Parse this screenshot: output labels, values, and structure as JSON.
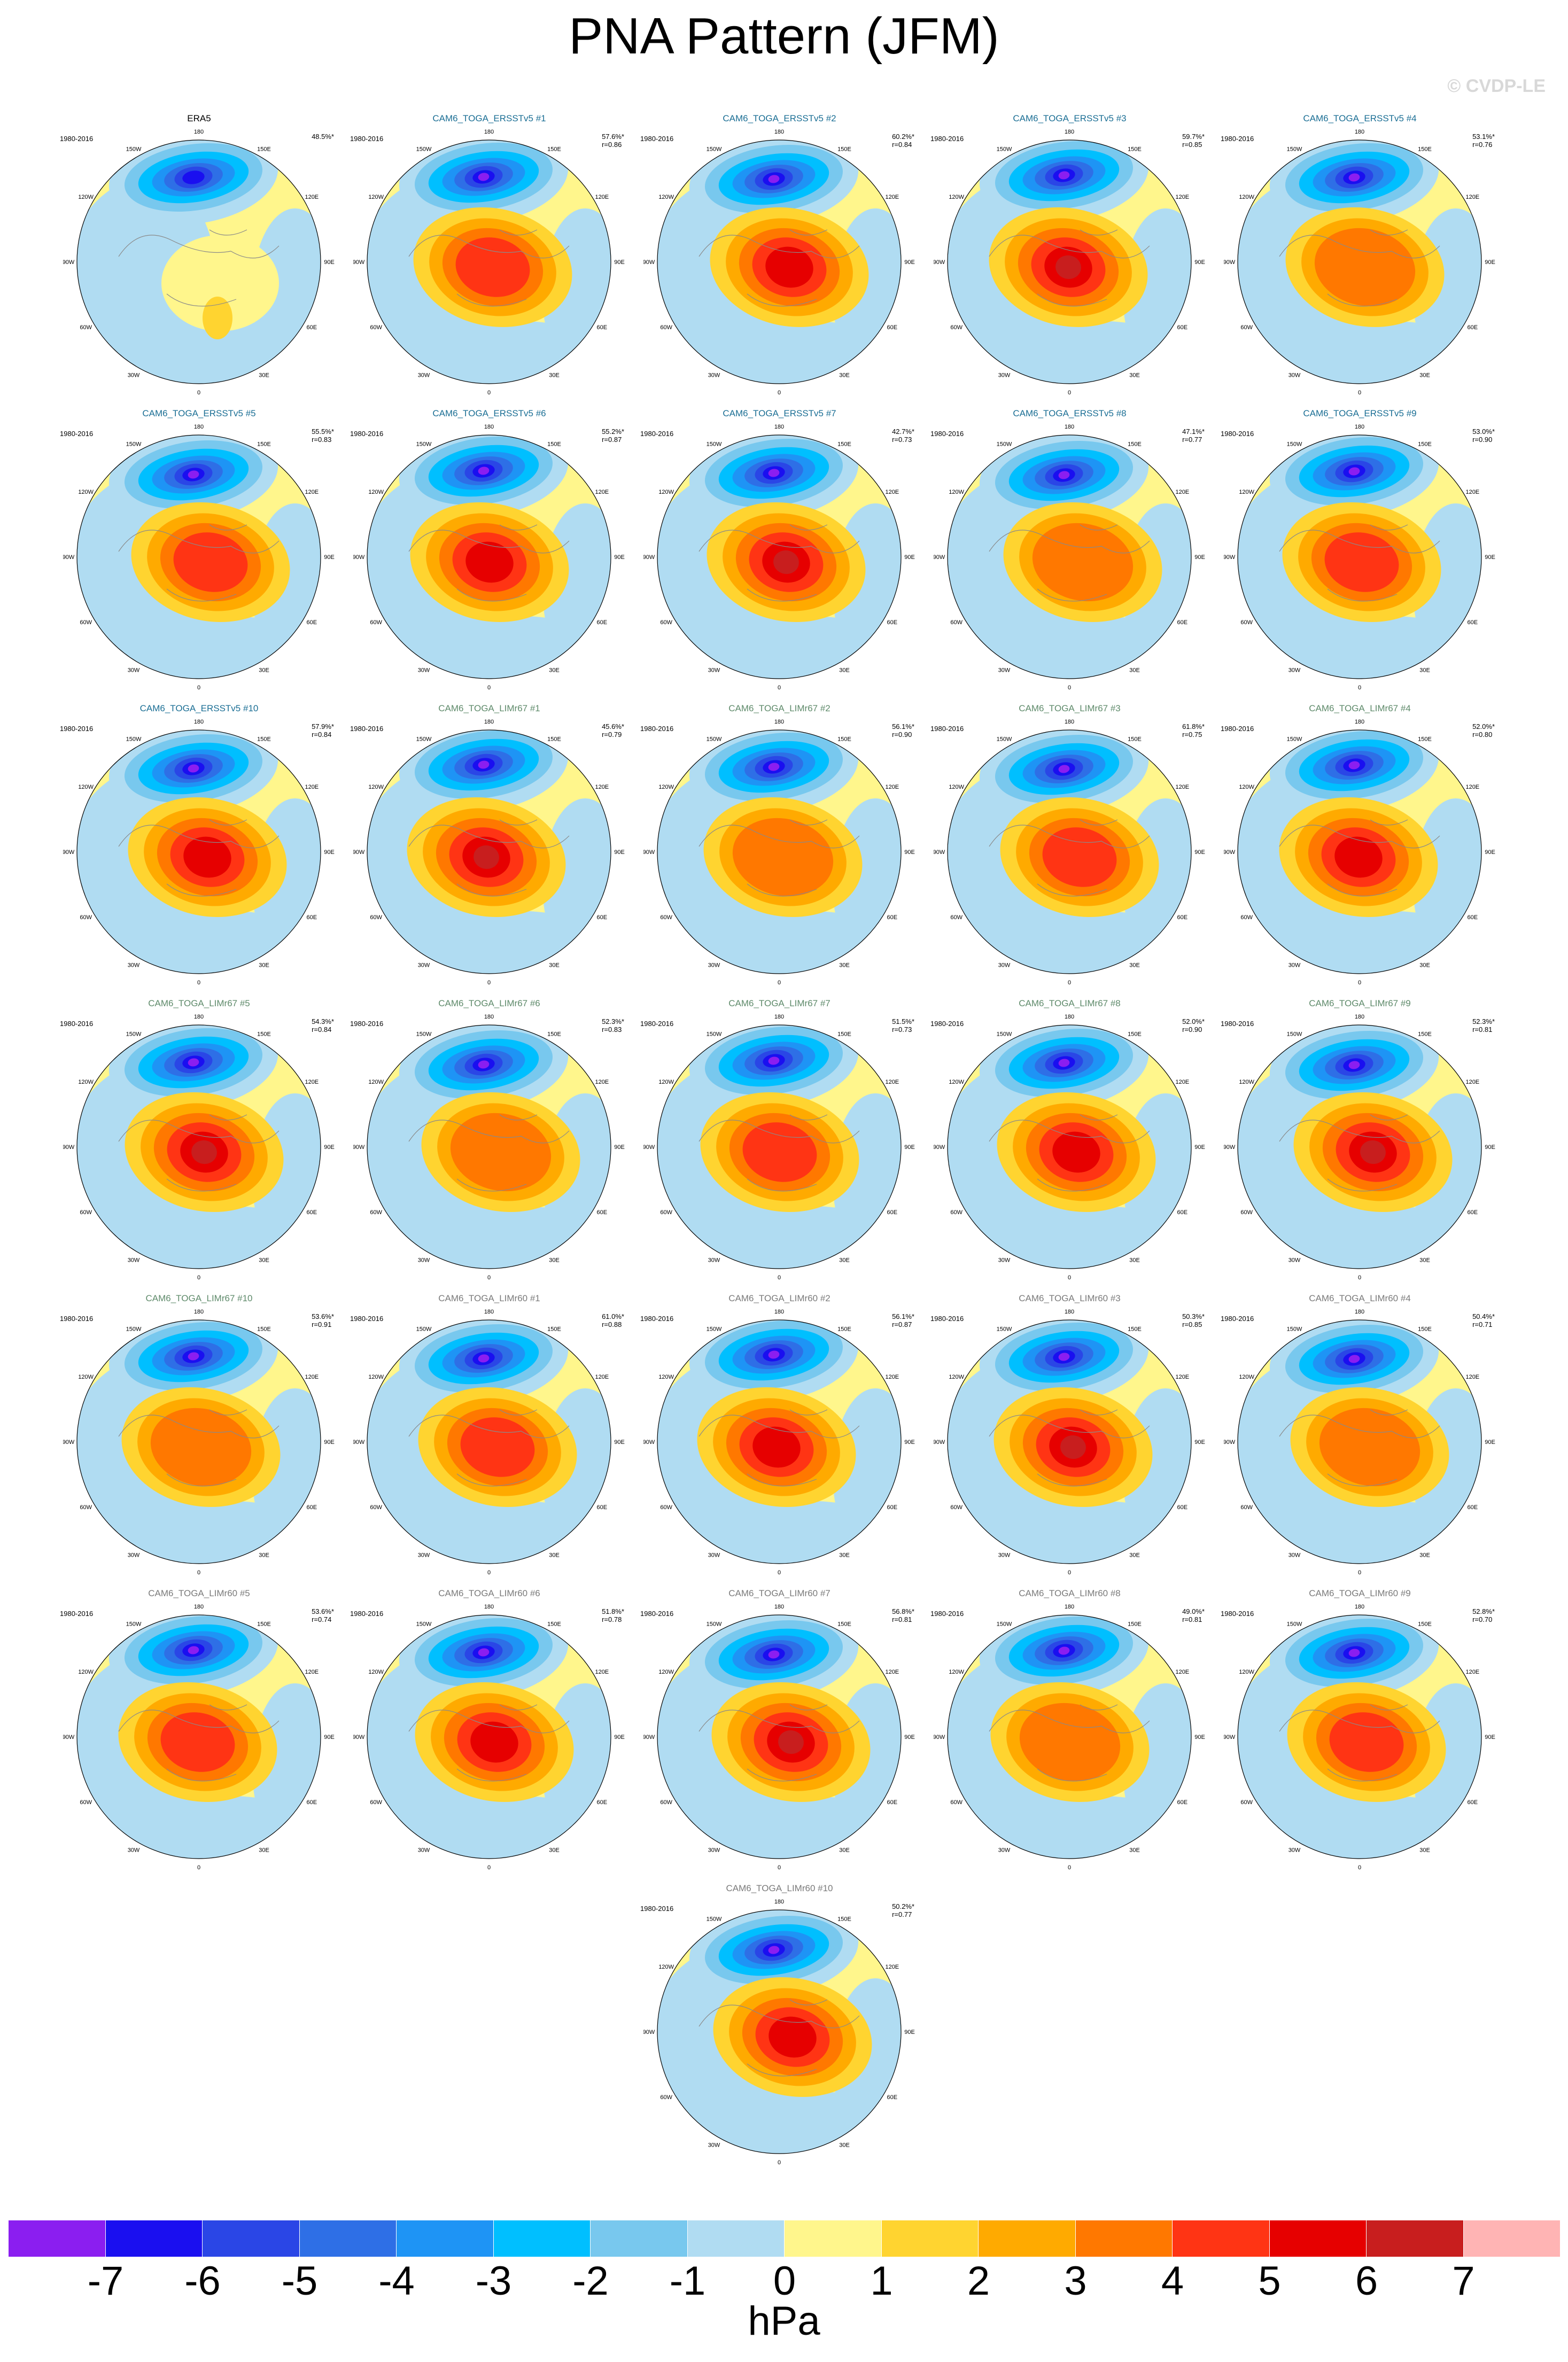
{
  "title": "PNA Pattern (JFM)",
  "watermark": "© CVDP-LE",
  "panels": [
    {
      "title": "ERA5",
      "group": "obs",
      "years": "1980-2016",
      "pct": "48.5%*",
      "r": ""
    },
    {
      "title": "CAM6_TOGA_ERSSTv5 #1",
      "group": "erss",
      "years": "1980-2016",
      "pct": "57.6%*",
      "r": "r=0.86"
    },
    {
      "title": "CAM6_TOGA_ERSSTv5 #2",
      "group": "erss",
      "years": "1980-2016",
      "pct": "60.2%*",
      "r": "r=0.84"
    },
    {
      "title": "CAM6_TOGA_ERSSTv5 #3",
      "group": "erss",
      "years": "1980-2016",
      "pct": "59.7%*",
      "r": "r=0.85"
    },
    {
      "title": "CAM6_TOGA_ERSSTv5 #4",
      "group": "erss",
      "years": "1980-2016",
      "pct": "53.1%*",
      "r": "r=0.76"
    },
    {
      "title": "CAM6_TOGA_ERSSTv5 #5",
      "group": "erss",
      "years": "1980-2016",
      "pct": "55.5%*",
      "r": "r=0.83"
    },
    {
      "title": "CAM6_TOGA_ERSSTv5 #6",
      "group": "erss",
      "years": "1980-2016",
      "pct": "55.2%*",
      "r": "r=0.87"
    },
    {
      "title": "CAM6_TOGA_ERSSTv5 #7",
      "group": "erss",
      "years": "1980-2016",
      "pct": "42.7%*",
      "r": "r=0.73"
    },
    {
      "title": "CAM6_TOGA_ERSSTv5 #8",
      "group": "erss",
      "years": "1980-2016",
      "pct": "47.1%*",
      "r": "r=0.77"
    },
    {
      "title": "CAM6_TOGA_ERSSTv5 #9",
      "group": "erss",
      "years": "1980-2016",
      "pct": "53.0%*",
      "r": "r=0.90"
    },
    {
      "title": "CAM6_TOGA_ERSSTv5 #10",
      "group": "erss",
      "years": "1980-2016",
      "pct": "57.9%*",
      "r": "r=0.84"
    },
    {
      "title": "CAM6_TOGA_LIMr67 #1",
      "group": "lim67",
      "years": "1980-2016",
      "pct": "45.6%*",
      "r": "r=0.79"
    },
    {
      "title": "CAM6_TOGA_LIMr67 #2",
      "group": "lim67",
      "years": "1980-2016",
      "pct": "56.1%*",
      "r": "r=0.90"
    },
    {
      "title": "CAM6_TOGA_LIMr67 #3",
      "group": "lim67",
      "years": "1980-2016",
      "pct": "61.8%*",
      "r": "r=0.75"
    },
    {
      "title": "CAM6_TOGA_LIMr67 #4",
      "group": "lim67",
      "years": "1980-2016",
      "pct": "52.0%*",
      "r": "r=0.80"
    },
    {
      "title": "CAM6_TOGA_LIMr67 #5",
      "group": "lim67",
      "years": "1980-2016",
      "pct": "54.3%*",
      "r": "r=0.84"
    },
    {
      "title": "CAM6_TOGA_LIMr67 #6",
      "group": "lim67",
      "years": "1980-2016",
      "pct": "52.3%*",
      "r": "r=0.83"
    },
    {
      "title": "CAM6_TOGA_LIMr67 #7",
      "group": "lim67",
      "years": "1980-2016",
      "pct": "51.5%*",
      "r": "r=0.73"
    },
    {
      "title": "CAM6_TOGA_LIMr67 #8",
      "group": "lim67",
      "years": "1980-2016",
      "pct": "52.0%*",
      "r": "r=0.90"
    },
    {
      "title": "CAM6_TOGA_LIMr67 #9",
      "group": "lim67",
      "years": "1980-2016",
      "pct": "52.3%*",
      "r": "r=0.81"
    },
    {
      "title": "CAM6_TOGA_LIMr67 #10",
      "group": "lim67",
      "years": "1980-2016",
      "pct": "53.6%*",
      "r": "r=0.91"
    },
    {
      "title": "CAM6_TOGA_LIMr60 #1",
      "group": "lim60",
      "years": "1980-2016",
      "pct": "61.0%*",
      "r": "r=0.88"
    },
    {
      "title": "CAM6_TOGA_LIMr60 #2",
      "group": "lim60",
      "years": "1980-2016",
      "pct": "56.1%*",
      "r": "r=0.87"
    },
    {
      "title": "CAM6_TOGA_LIMr60 #3",
      "group": "lim60",
      "years": "1980-2016",
      "pct": "50.3%*",
      "r": "r=0.85"
    },
    {
      "title": "CAM6_TOGA_LIMr60 #4",
      "group": "lim60",
      "years": "1980-2016",
      "pct": "50.4%*",
      "r": "r=0.71"
    },
    {
      "title": "CAM6_TOGA_LIMr60 #5",
      "group": "lim60",
      "years": "1980-2016",
      "pct": "53.6%*",
      "r": "r=0.74"
    },
    {
      "title": "CAM6_TOGA_LIMr60 #6",
      "group": "lim60",
      "years": "1980-2016",
      "pct": "51.8%*",
      "r": "r=0.78"
    },
    {
      "title": "CAM6_TOGA_LIMr60 #7",
      "group": "lim60",
      "years": "1980-2016",
      "pct": "56.8%*",
      "r": "r=0.81"
    },
    {
      "title": "CAM6_TOGA_LIMr60 #8",
      "group": "lim60",
      "years": "1980-2016",
      "pct": "49.0%*",
      "r": "r=0.81"
    },
    {
      "title": "CAM6_TOGA_LIMr60 #9",
      "group": "lim60",
      "years": "1980-2016",
      "pct": "52.8%*",
      "r": "r=0.70"
    },
    {
      "title": "CAM6_TOGA_LIMr60 #10",
      "group": "lim60",
      "years": "1980-2016",
      "pct": "50.2%*",
      "r": "r=0.77"
    }
  ],
  "longitude_labels": [
    "180",
    "150E",
    "120E",
    "90E",
    "60E",
    "30E",
    "0",
    "30W",
    "60W",
    "90W",
    "120W",
    "150W"
  ],
  "colorbar": {
    "colors": [
      "#8b1ef0",
      "#1a0ff0",
      "#2a46e6",
      "#2e6fe6",
      "#1e94f5",
      "#00bfff",
      "#78c8ee",
      "#b0dcf2",
      "#fff68c",
      "#ffd430",
      "#ffaa00",
      "#ff7800",
      "#ff3414",
      "#e60000",
      "#c81e1e",
      "#ffb4b4"
    ],
    "labels": [
      "-7",
      "-6",
      "-5",
      "-4",
      "-3",
      "-2",
      "-1",
      "0",
      "1",
      "2",
      "3",
      "4",
      "5",
      "6",
      "7"
    ],
    "unit": "hPa"
  }
}
